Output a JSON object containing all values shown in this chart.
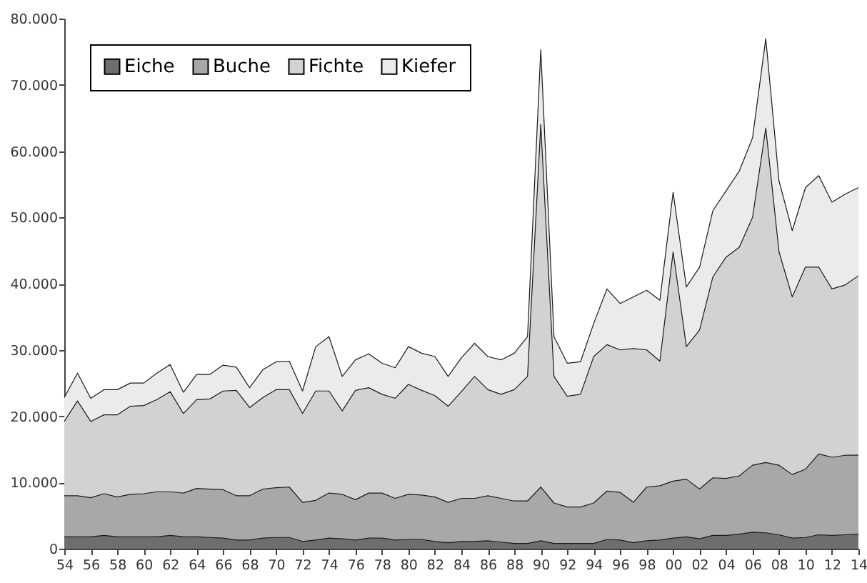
{
  "chart_data": {
    "type": "area",
    "stacked": true,
    "legend": "top left",
    "x": [
      1954,
      1955,
      1956,
      1957,
      1958,
      1959,
      1960,
      1961,
      1962,
      1963,
      1964,
      1965,
      1966,
      1967,
      1968,
      1969,
      1970,
      1971,
      1972,
      1973,
      1974,
      1975,
      1976,
      1977,
      1978,
      1979,
      1980,
      1981,
      1982,
      1983,
      1984,
      1985,
      1986,
      1987,
      1988,
      1989,
      1990,
      1991,
      1992,
      1993,
      1994,
      1995,
      1996,
      1997,
      1998,
      1999,
      2000,
      2001,
      2002,
      2003,
      2004,
      2005,
      2006,
      2007,
      2008,
      2009,
      2010,
      2011,
      2012,
      2013,
      2014
    ],
    "xlim": [
      1954,
      2014
    ],
    "xticks": [
      {
        "value": 1954,
        "label": "54"
      },
      {
        "value": 1956,
        "label": "56"
      },
      {
        "value": 1958,
        "label": "58"
      },
      {
        "value": 1960,
        "label": "60"
      },
      {
        "value": 1962,
        "label": "62"
      },
      {
        "value": 1964,
        "label": "64"
      },
      {
        "value": 1966,
        "label": "66"
      },
      {
        "value": 1968,
        "label": "68"
      },
      {
        "value": 1970,
        "label": "70"
      },
      {
        "value": 1972,
        "label": "72"
      },
      {
        "value": 1974,
        "label": "74"
      },
      {
        "value": 1976,
        "label": "76"
      },
      {
        "value": 1978,
        "label": "78"
      },
      {
        "value": 1980,
        "label": "80"
      },
      {
        "value": 1982,
        "label": "82"
      },
      {
        "value": 1984,
        "label": "84"
      },
      {
        "value": 1986,
        "label": "86"
      },
      {
        "value": 1988,
        "label": "88"
      },
      {
        "value": 1990,
        "label": "90"
      },
      {
        "value": 1992,
        "label": "92"
      },
      {
        "value": 1994,
        "label": "94"
      },
      {
        "value": 1996,
        "label": "96"
      },
      {
        "value": 1998,
        "label": "98"
      },
      {
        "value": 2000,
        "label": "00"
      },
      {
        "value": 2002,
        "label": "02"
      },
      {
        "value": 2004,
        "label": "04"
      },
      {
        "value": 2006,
        "label": "06"
      },
      {
        "value": 2008,
        "label": "08"
      },
      {
        "value": 2010,
        "label": "10"
      },
      {
        "value": 2012,
        "label": "12"
      },
      {
        "value": 2014,
        "label": "14"
      }
    ],
    "ylim": [
      0,
      80000
    ],
    "yticks": [
      0,
      {
        "value": 10000,
        "label": "10.000"
      },
      {
        "value": 20000,
        "label": "20.000"
      },
      {
        "value": 30000,
        "label": "30.000"
      },
      {
        "value": 40000,
        "label": "40.000"
      },
      {
        "value": 50000,
        "label": "50.000"
      },
      {
        "value": 60000,
        "label": "60.000"
      },
      {
        "value": 70000,
        "label": "70.000"
      },
      {
        "value": 80000,
        "label": "80.000"
      }
    ],
    "series": [
      {
        "name": "Eiche",
        "color": "#6e6e6e",
        "values": [
          1800,
          1800,
          1800,
          2000,
          1800,
          1800,
          1800,
          1800,
          2000,
          1800,
          1800,
          1700,
          1600,
          1300,
          1300,
          1600,
          1700,
          1700,
          1100,
          1300,
          1600,
          1500,
          1300,
          1600,
          1600,
          1300,
          1400,
          1400,
          1100,
          900,
          1100,
          1100,
          1200,
          1000,
          800,
          800,
          1200,
          800,
          800,
          800,
          800,
          1400,
          1300,
          900,
          1200,
          1300,
          1600,
          1800,
          1500,
          2000,
          2000,
          2200,
          2500,
          2400,
          2100,
          1600,
          1700,
          2100,
          2000,
          2100,
          2200
        ]
      },
      {
        "name": "Buche",
        "color": "#a8a8a8",
        "values": [
          6200,
          6200,
          5900,
          6300,
          6000,
          6400,
          6500,
          6800,
          6600,
          6600,
          7300,
          7300,
          7300,
          6700,
          6700,
          7400,
          7500,
          7600,
          5900,
          6000,
          6800,
          6700,
          6100,
          6800,
          6800,
          6300,
          6800,
          6700,
          6700,
          6100,
          6500,
          6500,
          6800,
          6600,
          6400,
          6400,
          8100,
          6100,
          5500,
          5500,
          6100,
          7300,
          7200,
          6100,
          8100,
          8200,
          8600,
          8700,
          7500,
          8700,
          8600,
          8800,
          10100,
          10600,
          10500,
          9600,
          10300,
          12200,
          11800,
          12000,
          11900
        ]
      },
      {
        "name": "Fichte",
        "color": "#d2d2d2",
        "values": [
          11200,
          14300,
          11500,
          11900,
          12400,
          13300,
          13300,
          13900,
          15100,
          12000,
          13400,
          13600,
          14900,
          15900,
          13300,
          13800,
          14800,
          14700,
          13400,
          16500,
          15400,
          12600,
          16500,
          15900,
          14900,
          15100,
          16600,
          15800,
          15300,
          14500,
          16100,
          18400,
          16000,
          15700,
          16800,
          18800,
          54700,
          19100,
          16700,
          17000,
          22100,
          22100,
          21500,
          23200,
          20700,
          18800,
          34600,
          20000,
          24000,
          30300,
          33400,
          34500,
          37400,
          50500,
          32200,
          26800,
          30500,
          28200,
          25400,
          25700,
          27100
        ]
      },
      {
        "name": "Kiefer",
        "color": "#ebebeb",
        "values": [
          3600,
          4200,
          3500,
          3800,
          3800,
          3500,
          3400,
          4000,
          4100,
          3200,
          3800,
          3700,
          3900,
          3500,
          3000,
          4200,
          4200,
          4300,
          3400,
          6700,
          8200,
          5200,
          4600,
          5100,
          4700,
          4600,
          5700,
          5600,
          5900,
          4500,
          5100,
          5000,
          5000,
          5200,
          5500,
          6000,
          11300,
          6000,
          5000,
          4900,
          5000,
          8400,
          7000,
          7800,
          9000,
          9200,
          9000,
          9000,
          9500,
          10000,
          10000,
          11500,
          12000,
          13500,
          10700,
          10000,
          12000,
          13800,
          13100,
          13700,
          13300
        ]
      }
    ]
  }
}
